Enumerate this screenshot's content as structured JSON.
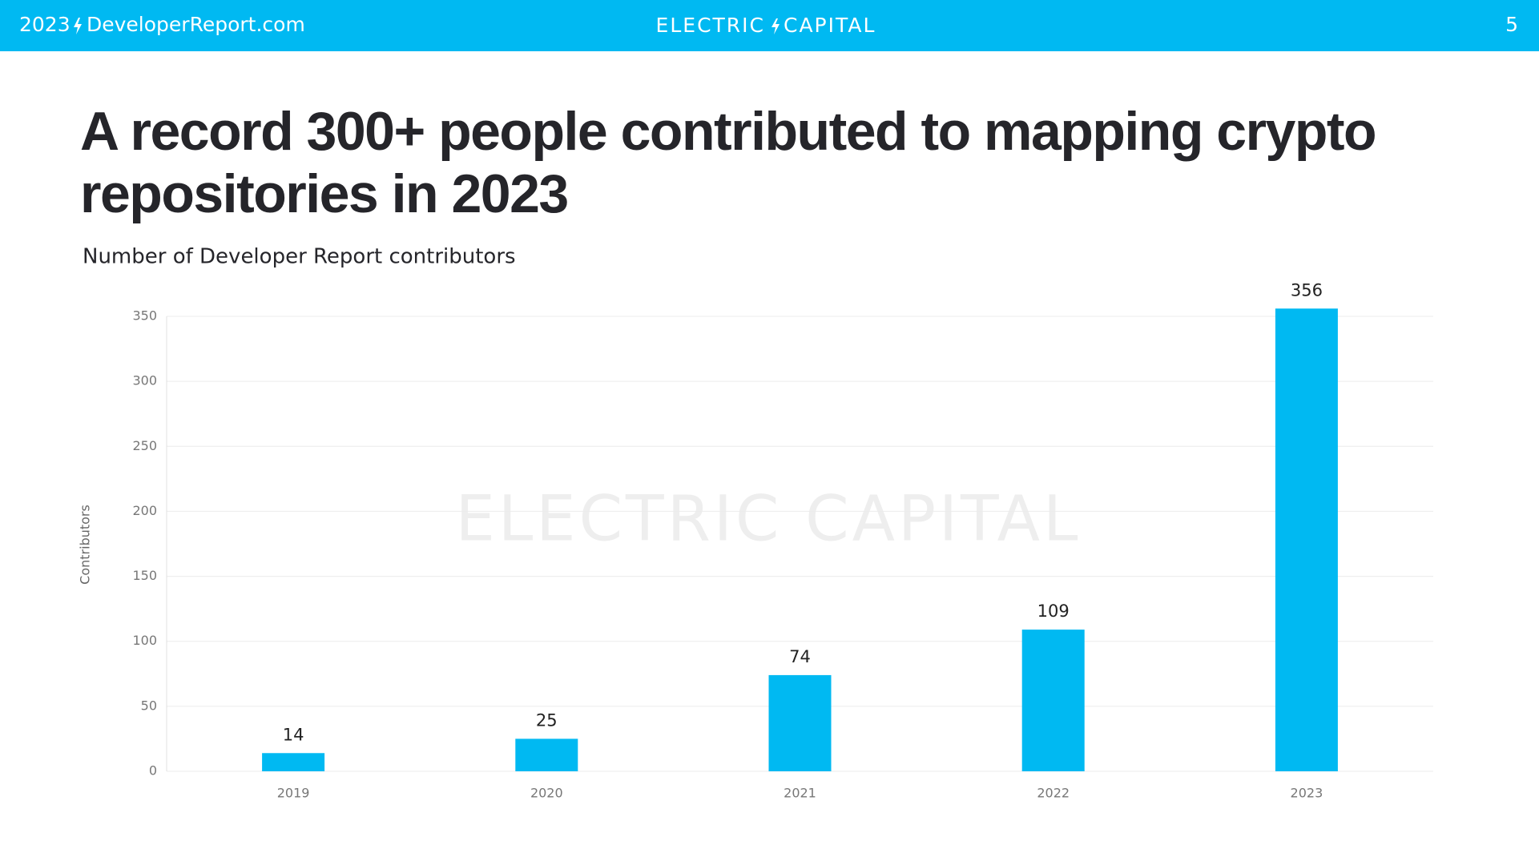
{
  "header": {
    "year": "2023",
    "site": "DeveloperReport.com",
    "brand_left": "ELECTRIC",
    "brand_right": "CAPITAL",
    "page": "5"
  },
  "title_lines": [
    "A record 300+ people contributed to mapping crypto",
    "repositories in 2023"
  ],
  "chart_data": {
    "type": "bar",
    "subtitle": "Number of Developer Report contributors",
    "y_label": "Contributors",
    "watermark": "ELECTRIC CAPITAL",
    "categories": [
      "2019",
      "2020",
      "2021",
      "2022",
      "2023"
    ],
    "values": [
      14,
      25,
      74,
      109,
      356
    ],
    "color": "#00b9f2",
    "ylim": [
      0,
      350
    ],
    "yticks": [
      0,
      50,
      100,
      150,
      200,
      250,
      300,
      350
    ],
    "grid": true
  }
}
